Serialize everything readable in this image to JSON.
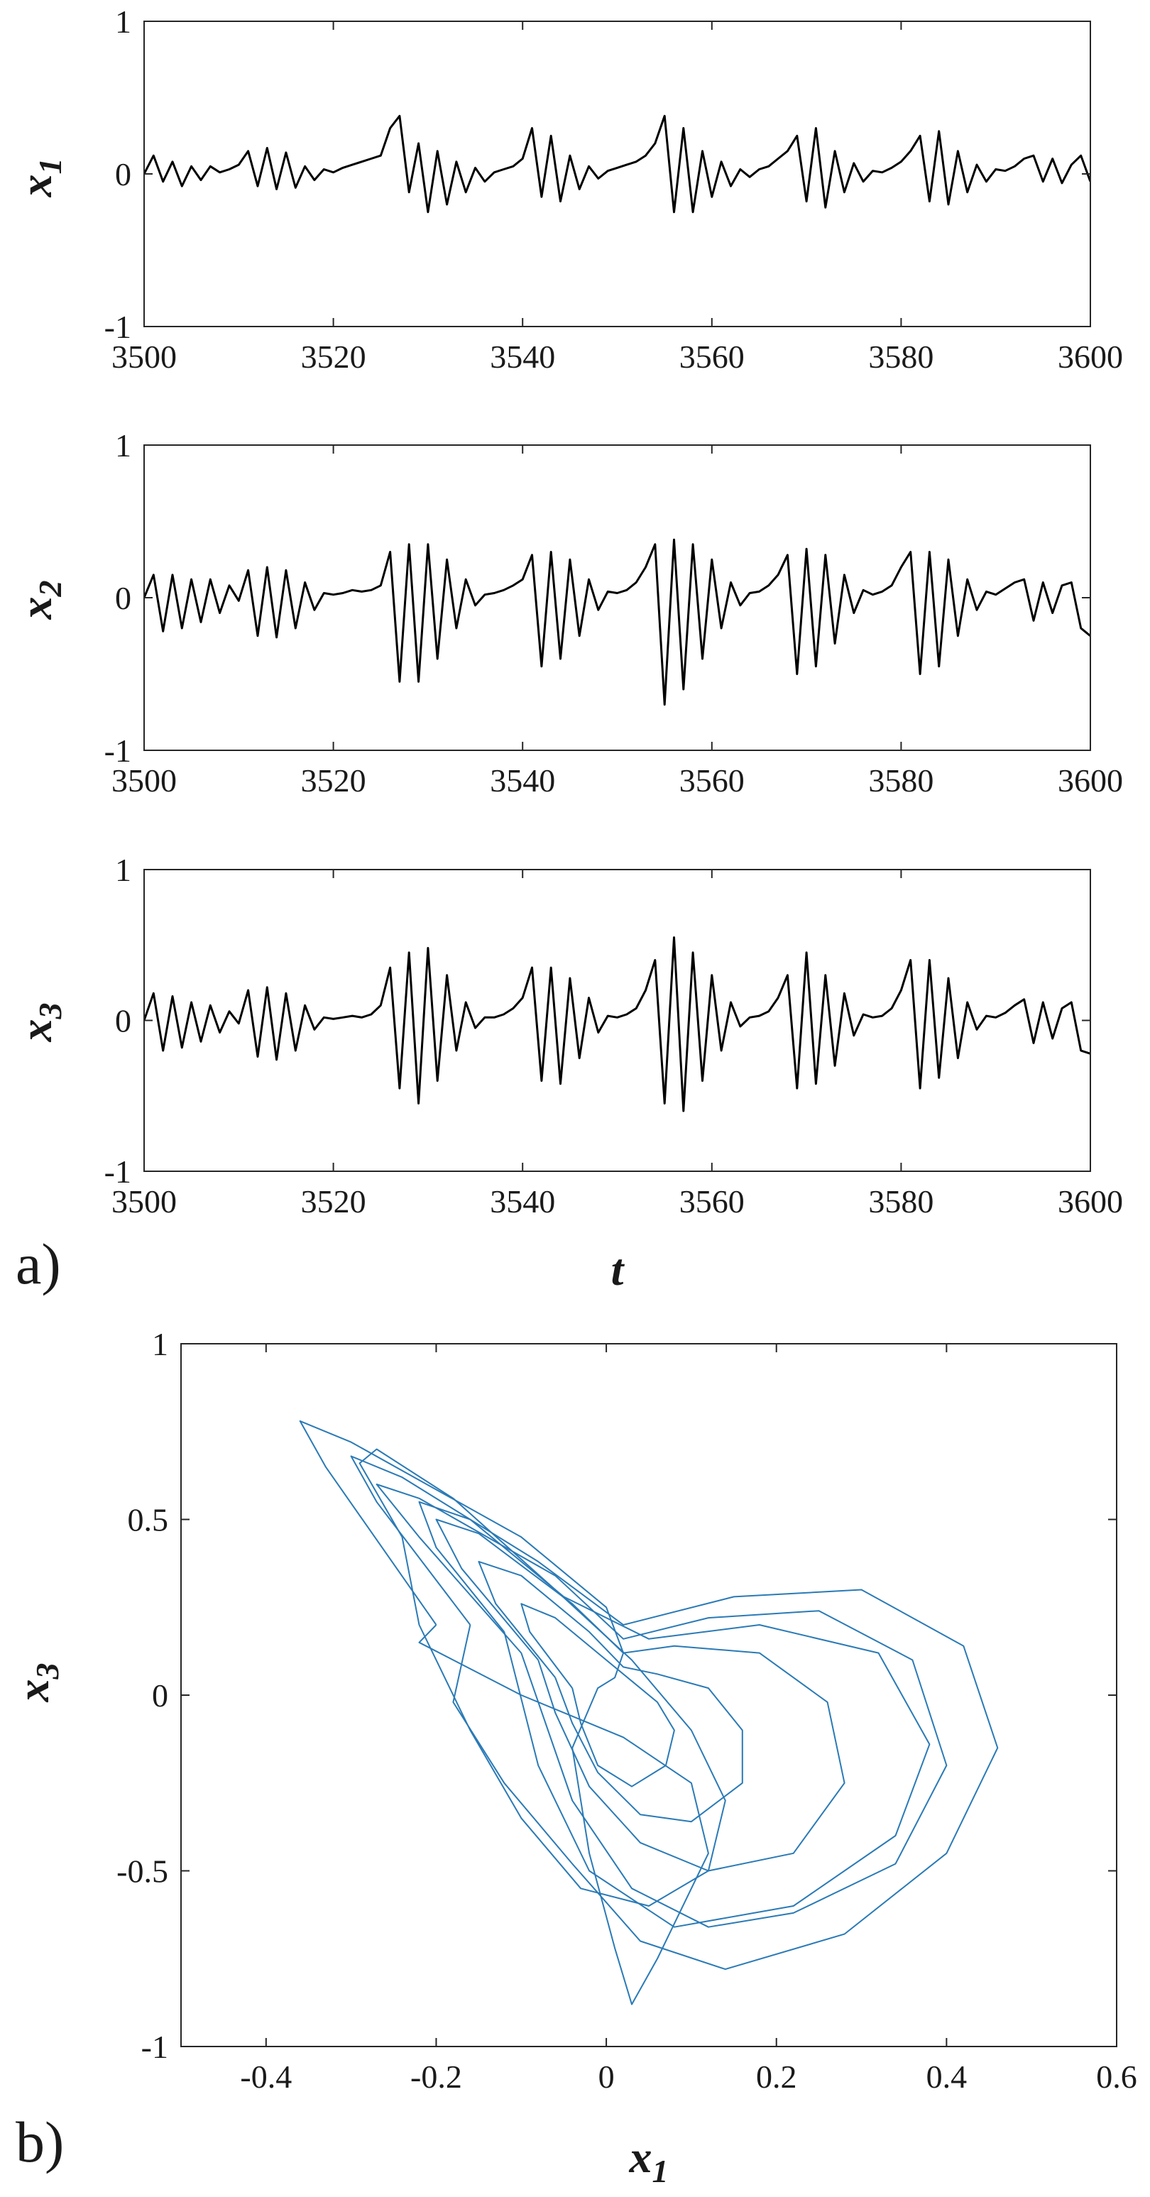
{
  "panel_labels": [
    "a)",
    "b)"
  ],
  "chart_data": [
    {
      "type": "line",
      "panel": "a)",
      "ylabel": "x",
      "ylabel_sub": "1",
      "xlabel": "",
      "xlim": [
        3500,
        3600
      ],
      "ylim": [
        -1,
        1
      ],
      "xticks": [
        3500,
        3520,
        3540,
        3560,
        3580,
        3600
      ],
      "yticks": [
        -1,
        0,
        1
      ],
      "color": "#000000",
      "series": [
        {
          "x": [
            3500,
            3501,
            3502,
            3503,
            3504,
            3505,
            3506,
            3507,
            3508,
            3509,
            3510,
            3511,
            3512,
            3513,
            3514,
            3515,
            3516,
            3517,
            3518,
            3519,
            3520,
            3521,
            3522,
            3523,
            3524,
            3525,
            3526,
            3527,
            3528,
            3529,
            3530,
            3531,
            3532,
            3533,
            3534,
            3535,
            3536,
            3537,
            3538,
            3539,
            3540,
            3541,
            3542,
            3543,
            3544,
            3545,
            3546,
            3547,
            3548,
            3549,
            3550,
            3551,
            3552,
            3553,
            3554,
            3555,
            3556,
            3557,
            3558,
            3559,
            3560,
            3561,
            3562,
            3563,
            3564,
            3565,
            3566,
            3567,
            3568,
            3569,
            3570,
            3571,
            3572,
            3573,
            3574,
            3575,
            3576,
            3577,
            3578,
            3579,
            3580,
            3581,
            3582,
            3583,
            3584,
            3585,
            3586,
            3587,
            3588,
            3589,
            3590,
            3591,
            3592,
            3593,
            3594,
            3595,
            3596,
            3597,
            3598,
            3599,
            3600
          ],
          "y": [
            0,
            0.12,
            -0.05,
            0.08,
            -0.08,
            0.05,
            -0.04,
            0.05,
            0.01,
            0.03,
            0.06,
            0.15,
            -0.08,
            0.17,
            -0.1,
            0.14,
            -0.09,
            0.05,
            -0.04,
            0.03,
            0.01,
            0.04,
            0.06,
            0.08,
            0.1,
            0.12,
            0.3,
            0.38,
            -0.12,
            0.2,
            -0.25,
            0.15,
            -0.2,
            0.08,
            -0.12,
            0.04,
            -0.05,
            0.01,
            0.03,
            0.05,
            0.1,
            0.3,
            -0.15,
            0.25,
            -0.18,
            0.12,
            -0.1,
            0.05,
            -0.03,
            0.02,
            0.04,
            0.06,
            0.08,
            0.12,
            0.2,
            0.38,
            -0.25,
            0.3,
            -0.25,
            0.15,
            -0.15,
            0.08,
            -0.08,
            0.03,
            -0.02,
            0.03,
            0.05,
            0.1,
            0.15,
            0.25,
            -0.18,
            0.3,
            -0.22,
            0.15,
            -0.12,
            0.07,
            -0.05,
            0.02,
            0.01,
            0.04,
            0.08,
            0.15,
            0.25,
            -0.18,
            0.28,
            -0.2,
            0.15,
            -0.12,
            0.06,
            -0.05,
            0.03,
            0.02,
            0.05,
            0.1,
            0.12,
            -0.05,
            0.1,
            -0.06,
            0.06,
            0.12,
            -0.05
          ]
        }
      ]
    },
    {
      "type": "line",
      "panel": "a)",
      "ylabel": "x",
      "ylabel_sub": "2",
      "xlabel": "",
      "xlim": [
        3500,
        3600
      ],
      "ylim": [
        -1,
        1
      ],
      "xticks": [
        3500,
        3520,
        3540,
        3560,
        3580,
        3600
      ],
      "yticks": [
        -1,
        0,
        1
      ],
      "color": "#000000",
      "series": [
        {
          "x": [
            3500,
            3501,
            3502,
            3503,
            3504,
            3505,
            3506,
            3507,
            3508,
            3509,
            3510,
            3511,
            3512,
            3513,
            3514,
            3515,
            3516,
            3517,
            3518,
            3519,
            3520,
            3521,
            3522,
            3523,
            3524,
            3525,
            3526,
            3527,
            3528,
            3529,
            3530,
            3531,
            3532,
            3533,
            3534,
            3535,
            3536,
            3537,
            3538,
            3539,
            3540,
            3541,
            3542,
            3543,
            3544,
            3545,
            3546,
            3547,
            3548,
            3549,
            3550,
            3551,
            3552,
            3553,
            3554,
            3555,
            3556,
            3557,
            3558,
            3559,
            3560,
            3561,
            3562,
            3563,
            3564,
            3565,
            3566,
            3567,
            3568,
            3569,
            3570,
            3571,
            3572,
            3573,
            3574,
            3575,
            3576,
            3577,
            3578,
            3579,
            3580,
            3581,
            3582,
            3583,
            3584,
            3585,
            3586,
            3587,
            3588,
            3589,
            3590,
            3591,
            3592,
            3593,
            3594,
            3595,
            3596,
            3597,
            3598,
            3599,
            3600
          ],
          "y": [
            0,
            0.15,
            -0.22,
            0.15,
            -0.2,
            0.12,
            -0.16,
            0.12,
            -0.1,
            0.08,
            -0.02,
            0.18,
            -0.25,
            0.2,
            -0.26,
            0.18,
            -0.2,
            0.1,
            -0.08,
            0.03,
            0.02,
            0.03,
            0.05,
            0.04,
            0.05,
            0.08,
            0.3,
            -0.55,
            0.35,
            -0.55,
            0.35,
            -0.4,
            0.25,
            -0.2,
            0.12,
            -0.05,
            0.02,
            0.03,
            0.05,
            0.08,
            0.12,
            0.28,
            -0.45,
            0.3,
            -0.4,
            0.25,
            -0.25,
            0.12,
            -0.08,
            0.04,
            0.03,
            0.05,
            0.1,
            0.2,
            0.35,
            -0.7,
            0.38,
            -0.6,
            0.35,
            -0.4,
            0.25,
            -0.2,
            0.1,
            -0.05,
            0.03,
            0.04,
            0.08,
            0.15,
            0.28,
            -0.5,
            0.32,
            -0.45,
            0.28,
            -0.3,
            0.15,
            -0.1,
            0.05,
            0.02,
            0.04,
            0.08,
            0.2,
            0.3,
            -0.5,
            0.3,
            -0.45,
            0.25,
            -0.25,
            0.12,
            -0.08,
            0.04,
            0.02,
            0.06,
            0.1,
            0.12,
            -0.15,
            0.1,
            -0.1,
            0.08,
            0.1,
            -0.2,
            -0.25
          ]
        }
      ]
    },
    {
      "type": "line",
      "panel": "a)",
      "ylabel": "x",
      "ylabel_sub": "3",
      "xlabel": "t",
      "xlim": [
        3500,
        3600
      ],
      "ylim": [
        -1,
        1
      ],
      "xticks": [
        3500,
        3520,
        3540,
        3560,
        3580,
        3600
      ],
      "yticks": [
        -1,
        0,
        1
      ],
      "color": "#000000",
      "series": [
        {
          "x": [
            3500,
            3501,
            3502,
            3503,
            3504,
            3505,
            3506,
            3507,
            3508,
            3509,
            3510,
            3511,
            3512,
            3513,
            3514,
            3515,
            3516,
            3517,
            3518,
            3519,
            3520,
            3521,
            3522,
            3523,
            3524,
            3525,
            3526,
            3527,
            3528,
            3529,
            3530,
            3531,
            3532,
            3533,
            3534,
            3535,
            3536,
            3537,
            3538,
            3539,
            3540,
            3541,
            3542,
            3543,
            3544,
            3545,
            3546,
            3547,
            3548,
            3549,
            3550,
            3551,
            3552,
            3553,
            3554,
            3555,
            3556,
            3557,
            3558,
            3559,
            3560,
            3561,
            3562,
            3563,
            3564,
            3565,
            3566,
            3567,
            3568,
            3569,
            3570,
            3571,
            3572,
            3573,
            3574,
            3575,
            3576,
            3577,
            3578,
            3579,
            3580,
            3581,
            3582,
            3583,
            3584,
            3585,
            3586,
            3587,
            3588,
            3589,
            3590,
            3591,
            3592,
            3593,
            3594,
            3595,
            3596,
            3597,
            3598,
            3599,
            3600
          ],
          "y": [
            0,
            0.18,
            -0.2,
            0.16,
            -0.18,
            0.12,
            -0.14,
            0.1,
            -0.08,
            0.06,
            -0.02,
            0.2,
            -0.24,
            0.22,
            -0.26,
            0.18,
            -0.2,
            0.1,
            -0.06,
            0.02,
            0.01,
            0.02,
            0.03,
            0.02,
            0.04,
            0.1,
            0.35,
            -0.45,
            0.45,
            -0.55,
            0.48,
            -0.4,
            0.3,
            -0.2,
            0.12,
            -0.05,
            0.02,
            0.02,
            0.04,
            0.08,
            0.15,
            0.35,
            -0.4,
            0.35,
            -0.42,
            0.28,
            -0.25,
            0.15,
            -0.08,
            0.03,
            0.02,
            0.04,
            0.08,
            0.2,
            0.4,
            -0.55,
            0.55,
            -0.6,
            0.45,
            -0.4,
            0.3,
            -0.2,
            0.12,
            -0.04,
            0.02,
            0.03,
            0.06,
            0.15,
            0.3,
            -0.45,
            0.45,
            -0.42,
            0.3,
            -0.3,
            0.18,
            -0.1,
            0.04,
            0.02,
            0.03,
            0.08,
            0.2,
            0.4,
            -0.45,
            0.4,
            -0.38,
            0.28,
            -0.25,
            0.12,
            -0.06,
            0.03,
            0.02,
            0.05,
            0.1,
            0.14,
            -0.15,
            0.12,
            -0.12,
            0.08,
            0.12,
            -0.2,
            -0.22
          ]
        }
      ]
    },
    {
      "type": "line",
      "panel": "b)",
      "xlabel": "x",
      "xlabel_sub": "1",
      "ylabel": "x",
      "ylabel_sub": "3",
      "xlim": [
        -0.5,
        0.6
      ],
      "ylim": [
        -1,
        1
      ],
      "xticks": [
        -0.4,
        -0.2,
        0,
        0.2,
        0.4,
        0.6
      ],
      "xtick_labels": [
        "-0.4",
        "-0.2",
        "0",
        "0.2",
        "0.4",
        "0.6"
      ],
      "yticks": [
        -1,
        -0.5,
        0,
        0.5,
        1
      ],
      "ytick_labels": [
        "-1",
        "-0.5",
        "0",
        "0.5",
        "1"
      ],
      "color": "#2a7ab6",
      "series": [
        {
          "x": [
            -0.2,
            -0.33,
            -0.36,
            -0.3,
            -0.1,
            0.0,
            0.02,
            0.01,
            -0.01,
            -0.04,
            -0.02,
            0.01,
            0.03,
            0.06,
            0.12,
            0.1,
            0.02,
            -0.1,
            -0.22,
            -0.2
          ],
          "y": [
            0.2,
            0.65,
            0.78,
            0.72,
            0.45,
            0.25,
            0.12,
            0.05,
            0.02,
            -0.15,
            -0.45,
            -0.72,
            -0.88,
            -0.75,
            -0.45,
            -0.25,
            -0.12,
            0.0,
            0.15,
            0.2
          ]
        },
        {
          "x": [
            -0.16,
            -0.27,
            -0.3,
            -0.24,
            -0.08,
            0.02,
            0.15,
            0.3,
            0.42,
            0.46,
            0.4,
            0.28,
            0.14,
            0.04,
            -0.04,
            -0.12,
            -0.18,
            -0.16
          ],
          "y": [
            0.2,
            0.55,
            0.68,
            0.62,
            0.38,
            0.2,
            0.28,
            0.3,
            0.14,
            -0.15,
            -0.45,
            -0.68,
            -0.78,
            -0.7,
            -0.48,
            -0.25,
            -0.02,
            0.2
          ]
        },
        {
          "x": [
            -0.1,
            -0.22,
            -0.27,
            -0.22,
            -0.06,
            0.02,
            0.12,
            0.25,
            0.36,
            0.4,
            0.34,
            0.22,
            0.12,
            0.03,
            -0.04,
            -0.1
          ],
          "y": [
            0.12,
            0.45,
            0.6,
            0.56,
            0.34,
            0.16,
            0.22,
            0.24,
            0.1,
            -0.2,
            -0.48,
            -0.62,
            -0.66,
            -0.55,
            -0.3,
            0.12
          ]
        },
        {
          "x": [
            -0.08,
            -0.17,
            -0.2,
            -0.15,
            -0.04,
            0.02,
            0.08,
            0.18,
            0.26,
            0.28,
            0.22,
            0.12,
            0.04,
            -0.02,
            -0.06,
            -0.08
          ],
          "y": [
            0.1,
            0.36,
            0.5,
            0.46,
            0.26,
            0.12,
            0.14,
            0.12,
            -0.02,
            -0.25,
            -0.45,
            -0.5,
            -0.42,
            -0.26,
            -0.05,
            0.1
          ]
        },
        {
          "x": [
            -0.06,
            -0.13,
            -0.15,
            -0.1,
            -0.02,
            0.02,
            0.06,
            0.12,
            0.16,
            0.16,
            0.1,
            0.04,
            -0.01,
            -0.04,
            -0.06
          ],
          "y": [
            0.05,
            0.26,
            0.38,
            0.34,
            0.18,
            0.08,
            0.06,
            0.02,
            -0.1,
            -0.25,
            -0.36,
            -0.34,
            -0.22,
            -0.08,
            0.05
          ]
        },
        {
          "x": [
            -0.04,
            -0.09,
            -0.1,
            -0.06,
            -0.01,
            0.03,
            0.06,
            0.08,
            0.07,
            0.03,
            -0.01,
            -0.03,
            -0.04
          ],
          "y": [
            0.02,
            0.18,
            0.26,
            0.22,
            0.12,
            0.04,
            -0.02,
            -0.1,
            -0.2,
            -0.26,
            -0.2,
            -0.08,
            0.02
          ]
        },
        {
          "x": [
            -0.24,
            -0.29,
            -0.27,
            -0.18,
            -0.06,
            0.03,
            0.1,
            0.14,
            0.12,
            0.05,
            -0.03,
            -0.1,
            -0.16,
            -0.22,
            -0.24
          ],
          "y": [
            0.45,
            0.66,
            0.7,
            0.56,
            0.3,
            0.1,
            -0.1,
            -0.3,
            -0.5,
            -0.6,
            -0.55,
            -0.35,
            -0.1,
            0.2,
            0.45
          ]
        },
        {
          "x": [
            -0.12,
            -0.2,
            -0.22,
            -0.16,
            -0.05,
            0.05,
            0.18,
            0.32,
            0.38,
            0.34,
            0.22,
            0.08,
            -0.02,
            -0.08,
            -0.12
          ],
          "y": [
            0.18,
            0.42,
            0.55,
            0.5,
            0.28,
            0.16,
            0.2,
            0.12,
            -0.14,
            -0.4,
            -0.6,
            -0.66,
            -0.5,
            -0.2,
            0.18
          ]
        }
      ]
    }
  ]
}
